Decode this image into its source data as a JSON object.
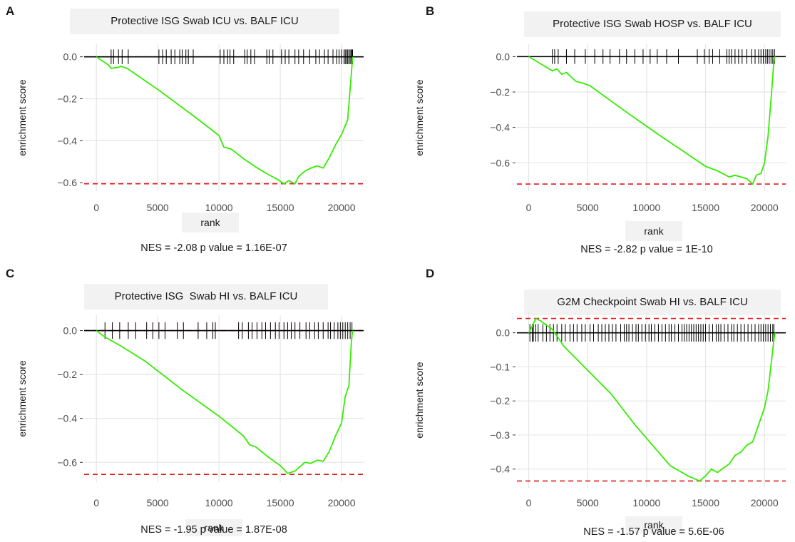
{
  "colors": {
    "curve": "#33ee00",
    "dashed": "#e41a1c",
    "zero": "#000000",
    "hits": "#000000",
    "grid": "#e6e6e6"
  },
  "chart_data": [
    {
      "letter": "A",
      "type": "line",
      "title": "Protective ISG Swab ICU vs. BALF ICU",
      "xlabel": "rank",
      "ylabel": "enrichment score",
      "stat_prefix": "NES = -2.08 p value = ",
      "stat_value": "1.16E-07",
      "xlim": [
        -1000,
        21800
      ],
      "ylim": [
        -0.64,
        0.06
      ],
      "x_ticks": [
        0,
        5000,
        10000,
        15000,
        20000
      ],
      "x_tick_labels": [
        "0",
        "5000",
        "10000",
        "15000",
        "20000"
      ],
      "y_ticks": [
        0.0,
        -0.2,
        -0.4,
        -0.6
      ],
      "y_tick_labels": [
        "0.0",
        "−0.2",
        "−0.4",
        "−0.6"
      ],
      "dashed_lines": [
        0.0,
        -0.605
      ],
      "curve": [
        [
          0,
          0
        ],
        [
          1000,
          -0.04
        ],
        [
          1200,
          -0.055
        ],
        [
          1800,
          -0.05
        ],
        [
          2000,
          -0.045
        ],
        [
          2500,
          -0.055
        ],
        [
          3000,
          -0.075
        ],
        [
          5000,
          -0.155
        ],
        [
          8000,
          -0.285
        ],
        [
          10000,
          -0.375
        ],
        [
          10400,
          -0.43
        ],
        [
          11000,
          -0.44
        ],
        [
          12000,
          -0.485
        ],
        [
          13000,
          -0.525
        ],
        [
          14000,
          -0.56
        ],
        [
          14800,
          -0.585
        ],
        [
          15300,
          -0.605
        ],
        [
          15700,
          -0.59
        ],
        [
          16200,
          -0.605
        ],
        [
          16500,
          -0.57
        ],
        [
          17000,
          -0.545
        ],
        [
          17500,
          -0.53
        ],
        [
          18000,
          -0.52
        ],
        [
          18500,
          -0.53
        ],
        [
          19000,
          -0.48
        ],
        [
          19500,
          -0.42
        ],
        [
          20000,
          -0.37
        ],
        [
          20500,
          -0.3
        ],
        [
          20800,
          -0.08
        ],
        [
          20900,
          0
        ]
      ],
      "hits": [
        1200,
        1400,
        1800,
        2100,
        2600,
        5100,
        5400,
        5700,
        6100,
        6400,
        6800,
        7000,
        7300,
        7500,
        7900,
        10100,
        10400,
        10700,
        10900,
        11200,
        12100,
        12300,
        12600,
        12900,
        13900,
        14100,
        14400,
        15100,
        15400,
        15700,
        16200,
        16500,
        16900,
        17400,
        17900,
        18200,
        18600,
        18900,
        19300,
        19600,
        19800,
        20000,
        20200,
        20300,
        20400,
        20500,
        20600,
        20700,
        20800,
        20850,
        20900
      ]
    },
    {
      "letter": "B",
      "type": "line",
      "title": "Protective ISG Swab HOSP vs. BALF ICU",
      "xlabel": "rank",
      "ylabel": "enrichment score",
      "stat_prefix": "NES = -2.82 p value = ",
      "stat_value": "1E-10",
      "xlim": [
        -1000,
        21800
      ],
      "ylim": [
        -0.76,
        0.07
      ],
      "x_ticks": [
        0,
        5000,
        10000,
        15000,
        20000
      ],
      "x_tick_labels": [
        "0",
        "5000",
        "10000",
        "15000",
        "20000"
      ],
      "y_ticks": [
        0.0,
        -0.2,
        -0.4,
        -0.6
      ],
      "y_tick_labels": [
        "0.0",
        "−0.2",
        "−0.4",
        "−0.6"
      ],
      "dashed_lines": [
        -0.72
      ],
      "curve": [
        [
          0,
          0
        ],
        [
          2000,
          -0.08
        ],
        [
          2400,
          -0.07
        ],
        [
          2800,
          -0.1
        ],
        [
          3200,
          -0.09
        ],
        [
          4000,
          -0.14
        ],
        [
          4600,
          -0.15
        ],
        [
          5200,
          -0.165
        ],
        [
          8000,
          -0.3
        ],
        [
          11000,
          -0.44
        ],
        [
          13000,
          -0.53
        ],
        [
          15000,
          -0.62
        ],
        [
          16000,
          -0.645
        ],
        [
          17000,
          -0.68
        ],
        [
          17500,
          -0.67
        ],
        [
          18500,
          -0.69
        ],
        [
          19000,
          -0.72
        ],
        [
          19300,
          -0.67
        ],
        [
          19700,
          -0.66
        ],
        [
          20000,
          -0.6
        ],
        [
          20300,
          -0.45
        ],
        [
          20600,
          -0.2
        ],
        [
          20800,
          -0.02
        ],
        [
          20900,
          0
        ]
      ],
      "hits": [
        2000,
        2200,
        2500,
        3200,
        3900,
        4800,
        5600,
        6300,
        6900,
        7700,
        8300,
        9000,
        9700,
        10300,
        10900,
        11700,
        12700,
        14300,
        14900,
        15300,
        15600,
        16200,
        16800,
        17000,
        17200,
        17500,
        17800,
        18100,
        18500,
        18900,
        19200,
        19500,
        19700,
        19900,
        20100,
        20250,
        20400,
        20550,
        20700,
        20850
      ]
    },
    {
      "letter": "C",
      "type": "line",
      "title": "Protective ISG  Swab HI vs. BALF ICU",
      "xlabel": "rank",
      "ylabel": "enrichment score",
      "stat_prefix": "NES = -1.95 p value = ",
      "stat_value": "1.87E-08",
      "xlim": [
        -1000,
        21800
      ],
      "ylim": [
        -0.69,
        0.07
      ],
      "x_ticks": [
        0,
        5000,
        10000,
        15000,
        20000
      ],
      "x_tick_labels": [
        "0",
        "5000",
        "10000",
        "15000",
        "20000"
      ],
      "y_ticks": [
        0.0,
        -0.2,
        -0.4,
        -0.6
      ],
      "y_tick_labels": [
        "0.0",
        "−0.2",
        "−0.4",
        "−0.6"
      ],
      "dashed_lines": [
        0.0,
        -0.655
      ],
      "curve": [
        [
          0,
          0
        ],
        [
          700,
          -0.03
        ],
        [
          2000,
          -0.07
        ],
        [
          4000,
          -0.14
        ],
        [
          7000,
          -0.27
        ],
        [
          10000,
          -0.39
        ],
        [
          12000,
          -0.48
        ],
        [
          12500,
          -0.52
        ],
        [
          13000,
          -0.53
        ],
        [
          14000,
          -0.575
        ],
        [
          15000,
          -0.615
        ],
        [
          15600,
          -0.65
        ],
        [
          16200,
          -0.64
        ],
        [
          16600,
          -0.62
        ],
        [
          17000,
          -0.6
        ],
        [
          17500,
          -0.605
        ],
        [
          18000,
          -0.59
        ],
        [
          18500,
          -0.595
        ],
        [
          19000,
          -0.55
        ],
        [
          19500,
          -0.48
        ],
        [
          20000,
          -0.42
        ],
        [
          20300,
          -0.3
        ],
        [
          20600,
          -0.25
        ],
        [
          20800,
          -0.05
        ],
        [
          20900,
          0
        ]
      ],
      "hits": [
        700,
        1300,
        1900,
        2600,
        3200,
        4100,
        4600,
        5100,
        5600,
        6600,
        7100,
        8300,
        9000,
        9500,
        9700,
        11600,
        11900,
        12400,
        12700,
        13100,
        13500,
        13800,
        14200,
        14600,
        14900,
        15300,
        15600,
        15900,
        16200,
        16600,
        17100,
        17400,
        17800,
        18100,
        18500,
        18900,
        19100,
        19400,
        19700,
        19900,
        20100,
        20300,
        20500,
        20700,
        20850
      ]
    },
    {
      "letter": "D",
      "type": "line",
      "title": "G2M Checkpoint Swab HI vs. BALF ICU",
      "xlabel": "rank",
      "ylabel": "enrichment score",
      "stat_prefix": "NES = -1.57 p value = ",
      "stat_value": "5.6E-06",
      "xlim": [
        -1000,
        21800
      ],
      "ylim": [
        -0.455,
        0.06
      ],
      "x_ticks": [
        0,
        5000,
        10000,
        15000,
        20000
      ],
      "x_tick_labels": [
        "0",
        "5000",
        "10000",
        "15000",
        "20000"
      ],
      "y_ticks": [
        0.0,
        -0.1,
        -0.2,
        -0.3,
        -0.4
      ],
      "y_tick_labels": [
        "0.0",
        "−0.1",
        "−0.2",
        "−0.3",
        "−0.4"
      ],
      "dashed_lines": [
        0.042,
        -0.435
      ],
      "curve": [
        [
          0,
          0
        ],
        [
          300,
          0.02
        ],
        [
          600,
          0.042
        ],
        [
          1000,
          0.035
        ],
        [
          2000,
          0.01
        ],
        [
          3000,
          -0.04
        ],
        [
          5000,
          -0.11
        ],
        [
          7000,
          -0.18
        ],
        [
          9000,
          -0.27
        ],
        [
          10500,
          -0.33
        ],
        [
          12000,
          -0.39
        ],
        [
          12500,
          -0.4
        ],
        [
          13500,
          -0.42
        ],
        [
          14500,
          -0.435
        ],
        [
          15000,
          -0.42
        ],
        [
          15500,
          -0.4
        ],
        [
          16000,
          -0.41
        ],
        [
          17000,
          -0.385
        ],
        [
          17500,
          -0.36
        ],
        [
          18000,
          -0.35
        ],
        [
          18500,
          -0.33
        ],
        [
          19000,
          -0.32
        ],
        [
          19500,
          -0.27
        ],
        [
          20000,
          -0.22
        ],
        [
          20300,
          -0.17
        ],
        [
          20600,
          -0.08
        ],
        [
          20800,
          -0.02
        ],
        [
          20900,
          0
        ]
      ],
      "hits": [
        100,
        300,
        400,
        600,
        800,
        1200,
        1500,
        1800,
        2100,
        2400,
        2800,
        3100,
        3500,
        3800,
        4100,
        4500,
        4800,
        5200,
        5500,
        5900,
        6200,
        6500,
        6800,
        7100,
        7400,
        7800,
        8100,
        8300,
        8500,
        8800,
        9100,
        9300,
        9600,
        9900,
        10200,
        10400,
        10700,
        11000,
        11300,
        11600,
        11900,
        12100,
        12400,
        12700,
        13000,
        13200,
        13400,
        13600,
        13800,
        14000,
        14200,
        14400,
        14600,
        14800,
        15000,
        15300,
        15600,
        15900,
        16100,
        16300,
        16600,
        16900,
        17200,
        17400,
        17700,
        18000,
        18300,
        18600,
        18900,
        19200,
        19500,
        19700,
        19900,
        20100,
        20300,
        20500,
        20700,
        20800
      ]
    }
  ]
}
